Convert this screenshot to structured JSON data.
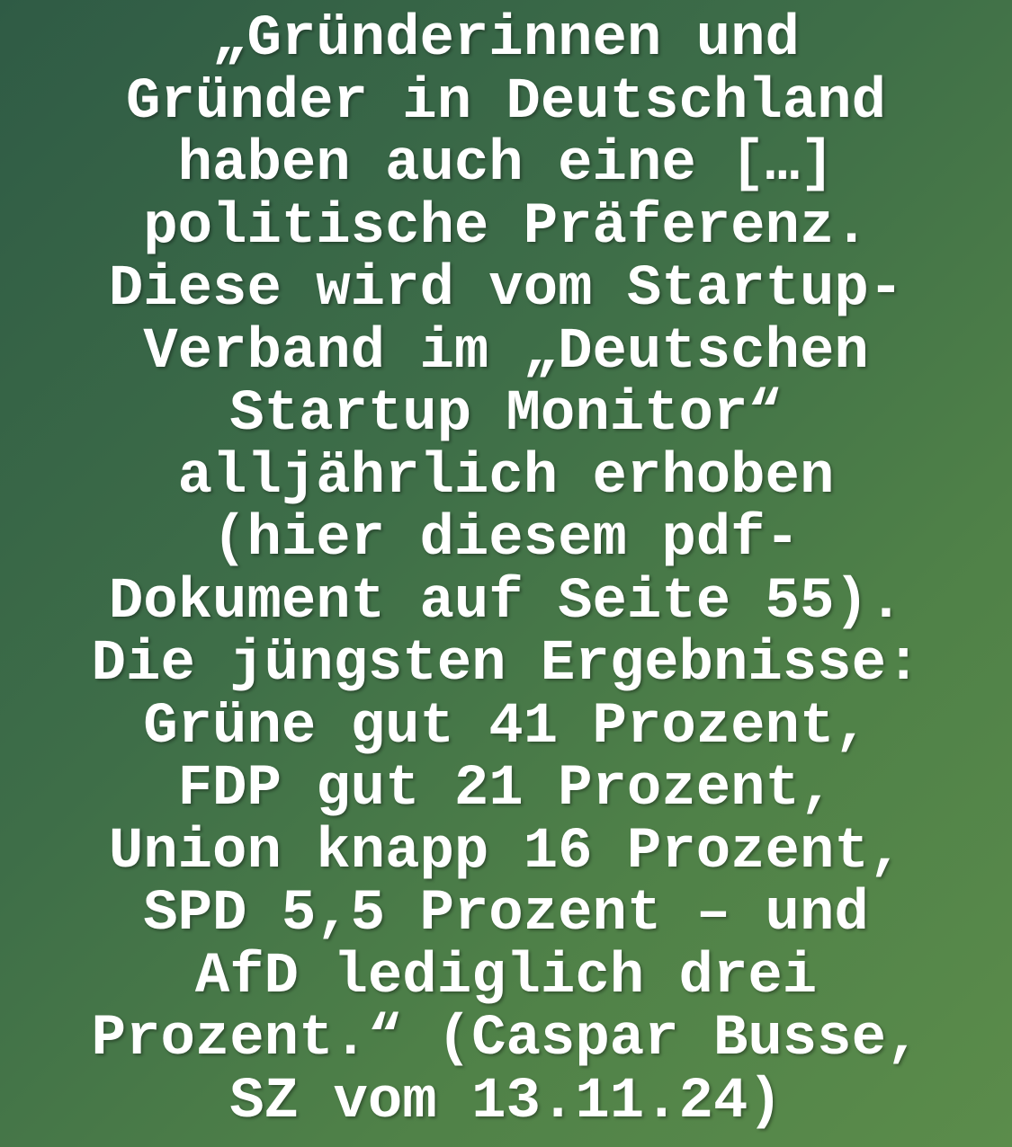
{
  "background": {
    "color_top_left": "#2f5b45",
    "color_bottom_right": "#5b8c4b"
  },
  "text_color": "#ffffff",
  "quote": {
    "lines": [
      "„Gründerinnen und",
      "Gründer in Deutschland",
      "haben auch eine […]",
      "politische Präferenz.",
      "Diese wird vom Startup-",
      "Verband im „Deutschen",
      "Startup Monitor“",
      "alljährlich erhoben",
      "(hier diesem pdf-",
      "Dokument auf Seite 55).",
      "Die jüngsten Ergebnisse:",
      "Grüne gut 41 Prozent,",
      "FDP gut 21 Prozent,",
      "Union knapp 16 Prozent,",
      "SPD 5,5 Prozent – und",
      "AfD lediglich drei",
      "Prozent.“ (Caspar Busse,",
      "SZ vom 13.11.24)"
    ]
  }
}
